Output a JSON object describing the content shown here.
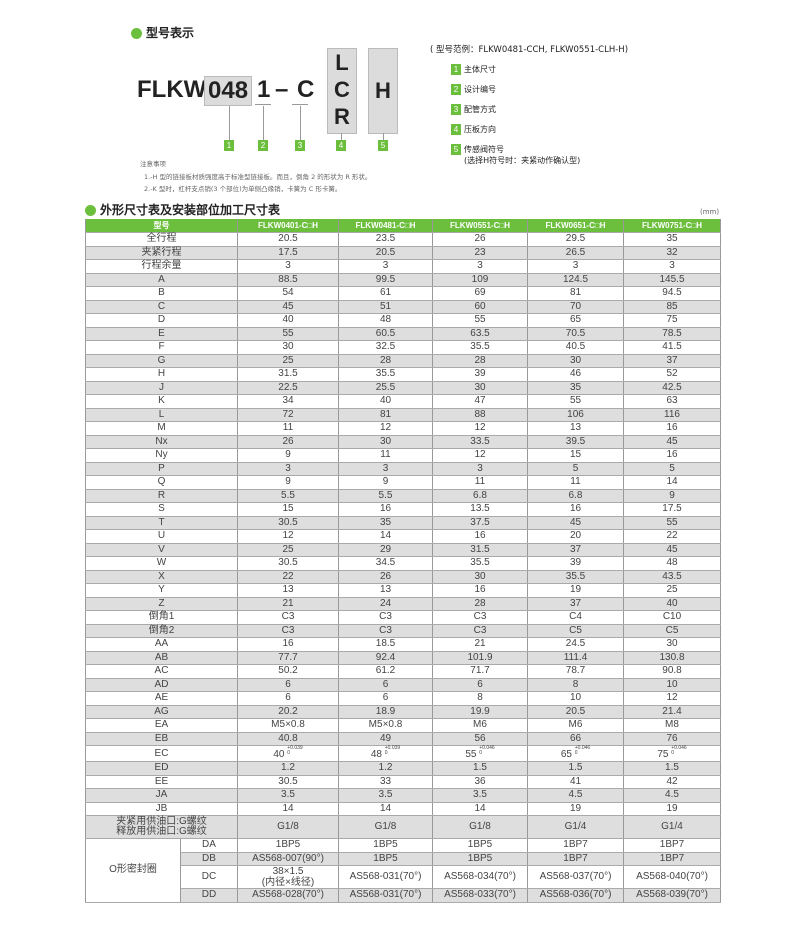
{
  "section1": {
    "title": "型号表示"
  },
  "model_code": {
    "prefix": "FLKW",
    "size": "048",
    "design": "1",
    "dash": "–",
    "piping": "C",
    "direction_options": [
      "L",
      "C",
      "R"
    ],
    "sensor": "H",
    "markers": [
      "1",
      "2",
      "3",
      "4",
      "5"
    ]
  },
  "example": "( 型号范例：FLKW0481-CCH, FLKW0551-CLH-H)",
  "legend": [
    {
      "n": "1",
      "label": "主体尺寸"
    },
    {
      "n": "2",
      "label": "设计编号"
    },
    {
      "n": "3",
      "label": "配管方式"
    },
    {
      "n": "4",
      "label": "压板方向"
    },
    {
      "n": "5",
      "label": "传感阀符号",
      "sub": "(选择H符号时：夹紧动作确认型)"
    }
  ],
  "notes": {
    "title": "注意事项",
    "items": [
      "1.-H 型的链接板材质强度高于标准型链接板。而且，倒角 2 的形状为 R 形状。",
      "2.-K 型时，杠杆支点销(3 个部位)为单侧凸缘销，卡簧为 C 形卡簧。"
    ]
  },
  "section2": {
    "title": "外形尺寸表及安装部位加工尺寸表",
    "unit": "(mm)"
  },
  "colors": {
    "accent": "#6cbf3c",
    "row_alt": "#dedede"
  },
  "table": {
    "headers": [
      "型号",
      "FLKW0401-C□H",
      "FLKW0481-C□H",
      "FLKW0551-C□H",
      "FLKW0651-C□H",
      "FLKW0751-C□H"
    ],
    "rows": [
      {
        "label": "全行程",
        "values": [
          "20.5",
          "23.5",
          "26",
          "29.5",
          "35"
        ]
      },
      {
        "label": "夹紧行程",
        "values": [
          "17.5",
          "20.5",
          "23",
          "26.5",
          "32"
        ]
      },
      {
        "label": "行程余量",
        "values": [
          "3",
          "3",
          "3",
          "3",
          "3"
        ]
      },
      {
        "label": "A",
        "values": [
          "88.5",
          "99.5",
          "109",
          "124.5",
          "145.5"
        ]
      },
      {
        "label": "B",
        "values": [
          "54",
          "61",
          "69",
          "81",
          "94.5"
        ]
      },
      {
        "label": "C",
        "values": [
          "45",
          "51",
          "60",
          "70",
          "85"
        ]
      },
      {
        "label": "D",
        "values": [
          "40",
          "48",
          "55",
          "65",
          "75"
        ]
      },
      {
        "label": "E",
        "values": [
          "55",
          "60.5",
          "63.5",
          "70.5",
          "78.5"
        ]
      },
      {
        "label": "F",
        "values": [
          "30",
          "32.5",
          "35.5",
          "40.5",
          "41.5"
        ]
      },
      {
        "label": "G",
        "values": [
          "25",
          "28",
          "28",
          "30",
          "37"
        ]
      },
      {
        "label": "H",
        "values": [
          "31.5",
          "35.5",
          "39",
          "46",
          "52"
        ]
      },
      {
        "label": "J",
        "values": [
          "22.5",
          "25.5",
          "30",
          "35",
          "42.5"
        ]
      },
      {
        "label": "K",
        "values": [
          "34",
          "40",
          "47",
          "55",
          "63"
        ]
      },
      {
        "label": "L",
        "values": [
          "72",
          "81",
          "88",
          "106",
          "116"
        ]
      },
      {
        "label": "M",
        "values": [
          "11",
          "12",
          "12",
          "13",
          "16"
        ]
      },
      {
        "label": "Nx",
        "values": [
          "26",
          "30",
          "33.5",
          "39.5",
          "45"
        ]
      },
      {
        "label": "Ny",
        "values": [
          "9",
          "11",
          "12",
          "15",
          "16"
        ]
      },
      {
        "label": "P",
        "values": [
          "3",
          "3",
          "3",
          "5",
          "5"
        ]
      },
      {
        "label": "Q",
        "values": [
          "9",
          "9",
          "11",
          "11",
          "14"
        ]
      },
      {
        "label": "R",
        "values": [
          "5.5",
          "5.5",
          "6.8",
          "6.8",
          "9"
        ]
      },
      {
        "label": "S",
        "values": [
          "15",
          "16",
          "13.5",
          "16",
          "17.5"
        ]
      },
      {
        "label": "T",
        "values": [
          "30.5",
          "35",
          "37.5",
          "45",
          "55"
        ]
      },
      {
        "label": "U",
        "values": [
          "12",
          "14",
          "16",
          "20",
          "22"
        ]
      },
      {
        "label": "V",
        "values": [
          "25",
          "29",
          "31.5",
          "37",
          "45"
        ]
      },
      {
        "label": "W",
        "values": [
          "30.5",
          "34.5",
          "35.5",
          "39",
          "48"
        ]
      },
      {
        "label": "X",
        "values": [
          "22",
          "26",
          "30",
          "35.5",
          "43.5"
        ]
      },
      {
        "label": "Y",
        "values": [
          "13",
          "13",
          "16",
          "19",
          "25"
        ]
      },
      {
        "label": "Z",
        "values": [
          "21",
          "24",
          "28",
          "37",
          "40"
        ]
      },
      {
        "label": "倒角1",
        "values": [
          "C3",
          "C3",
          "C3",
          "C4",
          "C10"
        ]
      },
      {
        "label": "倒角2",
        "values": [
          "C3",
          "C3",
          "C3",
          "C5",
          "C5"
        ]
      },
      {
        "label": "AA",
        "values": [
          "16",
          "18.5",
          "21",
          "24.5",
          "30"
        ]
      },
      {
        "label": "AB",
        "values": [
          "77.7",
          "92.4",
          "101.9",
          "111.4",
          "130.8"
        ]
      },
      {
        "label": "AC",
        "values": [
          "50.2",
          "61.2",
          "71.7",
          "78.7",
          "90.8"
        ]
      },
      {
        "label": "AD",
        "values": [
          "6",
          "6",
          "6",
          "8",
          "10"
        ]
      },
      {
        "label": "AE",
        "values": [
          "6",
          "6",
          "8",
          "10",
          "12"
        ]
      },
      {
        "label": "AG",
        "values": [
          "20.2",
          "18.9",
          "19.9",
          "20.5",
          "21.4"
        ]
      },
      {
        "label": "EA",
        "values": [
          "M5×0.8",
          "M5×0.8",
          "M6",
          "M6",
          "M8"
        ]
      },
      {
        "label": "EB",
        "values": [
          "40.8",
          "49",
          "56",
          "66",
          "76"
        ]
      },
      {
        "label": "EC",
        "values": [
          "40",
          "48",
          "55",
          "65",
          "75"
        ],
        "tol_upper": [
          "+0.039",
          "+0.039",
          "+0.046",
          "+0.046",
          "+0.046"
        ],
        "tol_lower": [
          "0",
          "0",
          "0",
          "0",
          "0"
        ]
      },
      {
        "label": "ED",
        "values": [
          "1.2",
          "1.2",
          "1.5",
          "1.5",
          "1.5"
        ]
      },
      {
        "label": "EE",
        "values": [
          "30.5",
          "33",
          "36",
          "41",
          "42"
        ]
      },
      {
        "label": "JA",
        "values": [
          "3.5",
          "3.5",
          "3.5",
          "4.5",
          "4.5"
        ]
      },
      {
        "label": "JB",
        "values": [
          "14",
          "14",
          "14",
          "19",
          "19"
        ]
      }
    ],
    "port": {
      "label1": "夹紧用供油口:G螺纹",
      "label2": "释放用供油口:G螺纹",
      "values": [
        "G1/8",
        "G1/8",
        "G1/8",
        "G1/4",
        "G1/4"
      ]
    },
    "oring": {
      "label": "O形密封圈",
      "rows": [
        {
          "label": "DA",
          "values": [
            "1BP5",
            "1BP5",
            "1BP5",
            "1BP7",
            "1BP7"
          ]
        },
        {
          "label": "DB",
          "values": [
            "AS568-007(90°)",
            "1BP5",
            "1BP5",
            "1BP7",
            "1BP7"
          ]
        },
        {
          "label": "DC",
          "values": [
            "38×1.5\n(内径×线径)",
            "AS568-031(70°)",
            "AS568-034(70°)",
            "AS568-037(70°)",
            "AS568-040(70°)"
          ]
        },
        {
          "label": "DD",
          "values": [
            "AS568-028(70°)",
            "AS568-031(70°)",
            "AS568-033(70°)",
            "AS568-036(70°)",
            "AS568-039(70°)"
          ]
        }
      ]
    }
  }
}
